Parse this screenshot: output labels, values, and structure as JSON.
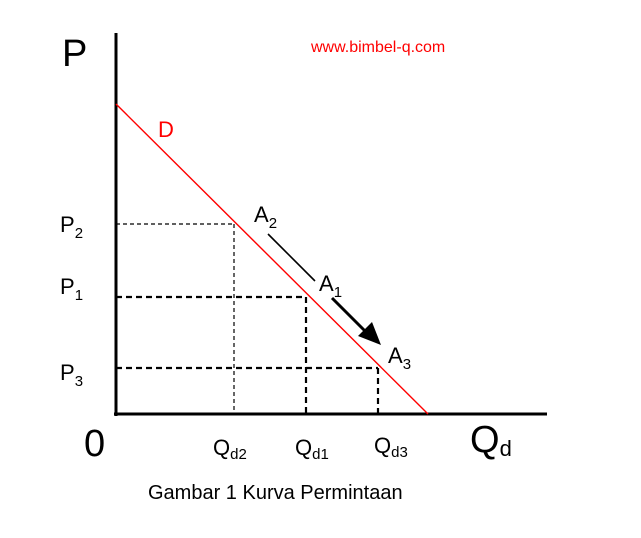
{
  "watermark": "www.bimbel-q.com",
  "caption": "Gambar 1 Kurva Permintaan",
  "colors": {
    "curve": "#ff0000",
    "axis": "#000000",
    "watermark": "#ff0000"
  },
  "axes": {
    "y_label": "P",
    "x_label_main": "Q",
    "x_label_sub": "d",
    "origin_label": "0"
  },
  "curve_label": "D",
  "price_levels": [
    {
      "main": "P",
      "sub": "2"
    },
    {
      "main": "P",
      "sub": "1"
    },
    {
      "main": "P",
      "sub": "3"
    }
  ],
  "quantity_levels": [
    {
      "main": "Q",
      "sub": "d2"
    },
    {
      "main": "Q",
      "sub": "d1"
    },
    {
      "main": "Q",
      "sub": "d3"
    }
  ],
  "points": [
    {
      "main": "A",
      "sub": "2"
    },
    {
      "main": "A",
      "sub": "1"
    },
    {
      "main": "A",
      "sub": "3"
    }
  ]
}
